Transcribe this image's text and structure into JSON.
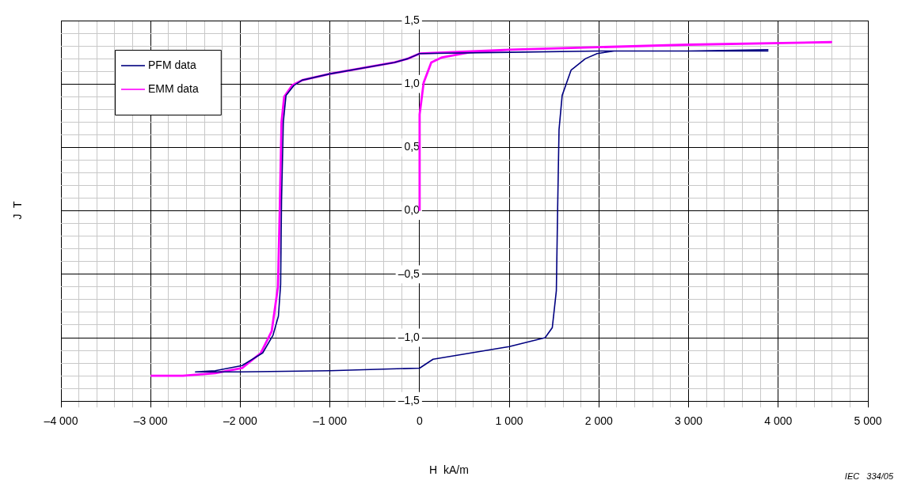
{
  "chart_data": {
    "type": "line",
    "xlabel": "H  kA/m",
    "ylabel": "J  T",
    "annotations": [
      "IEC   334/05"
    ],
    "series": [
      {
        "name": "PFM data",
        "color": "#000080",
        "x": [
          3890,
          3000,
          2000,
          1000,
          0,
          -130,
          -280,
          -1000,
          -1310,
          -1400,
          -1490,
          -1520,
          -1540,
          -1550,
          -1575,
          -1635,
          -1750,
          -1980,
          -2280,
          -2500,
          -2000,
          -1000,
          0,
          150,
          1000,
          1400,
          1480,
          1525,
          1540,
          1555,
          1590,
          1690,
          1850,
          1980,
          2170,
          3000,
          3890
        ],
        "values": [
          1.26,
          1.26,
          1.26,
          1.25,
          1.24,
          1.2,
          1.17,
          1.08,
          1.03,
          0.99,
          0.91,
          0.7,
          0.08,
          -0.58,
          -0.83,
          -0.98,
          -1.12,
          -1.22,
          -1.26,
          -1.27,
          -1.27,
          -1.26,
          -1.24,
          -1.17,
          -1.07,
          -1.0,
          -0.92,
          -0.63,
          0.04,
          0.64,
          0.91,
          1.11,
          1.2,
          1.24,
          1.26,
          1.26,
          1.27
        ]
      },
      {
        "name": "EMM data",
        "color": "#ff00ff",
        "x": [
          0,
          0,
          45,
          130,
          250,
          560,
          1000,
          3000,
          4590,
          3000,
          1000,
          0,
          -130,
          -280,
          -1000,
          -1310,
          -1420,
          -1510,
          -1540,
          -1560,
          -1580,
          -1650,
          -1770,
          -1980,
          -2280,
          -2640,
          -3000
        ],
        "values": [
          0,
          0.76,
          1.01,
          1.17,
          1.21,
          1.25,
          1.27,
          1.31,
          1.33,
          1.31,
          1.27,
          1.24,
          1.2,
          1.17,
          1.08,
          1.03,
          0.99,
          0.9,
          0.7,
          0.0,
          -0.6,
          -0.95,
          -1.12,
          -1.24,
          -1.28,
          -1.3,
          -1.3
        ]
      }
    ],
    "xlim": [
      -4000,
      5000
    ],
    "xticks": [
      {
        "value": -4000,
        "label": "–4 000"
      },
      {
        "value": -3800,
        "label": null
      },
      {
        "value": -3600,
        "label": null
      },
      {
        "value": -3400,
        "label": null
      },
      {
        "value": -3200,
        "label": null
      },
      {
        "value": -3000,
        "label": "–3 000"
      },
      {
        "value": -2800,
        "label": null
      },
      {
        "value": -2600,
        "label": null
      },
      {
        "value": -2400,
        "label": null
      },
      {
        "value": -2200,
        "label": null
      },
      {
        "value": -2000,
        "label": "–2 000"
      },
      {
        "value": -1800,
        "label": null
      },
      {
        "value": -1600,
        "label": null
      },
      {
        "value": -1400,
        "label": null
      },
      {
        "value": -1200,
        "label": null
      },
      {
        "value": -1000,
        "label": "–1 000"
      },
      {
        "value": -800,
        "label": null
      },
      {
        "value": -600,
        "label": null
      },
      {
        "value": -400,
        "label": null
      },
      {
        "value": -200,
        "label": null
      },
      {
        "value": 0,
        "label": "0"
      },
      {
        "value": 200,
        "label": null
      },
      {
        "value": 400,
        "label": null
      },
      {
        "value": 600,
        "label": null
      },
      {
        "value": 800,
        "label": null
      },
      {
        "value": 1000,
        "label": "1 000"
      },
      {
        "value": 1200,
        "label": null
      },
      {
        "value": 1400,
        "label": null
      },
      {
        "value": 1600,
        "label": null
      },
      {
        "value": 1800,
        "label": null
      },
      {
        "value": 2000,
        "label": "2 000"
      },
      {
        "value": 2200,
        "label": null
      },
      {
        "value": 2400,
        "label": null
      },
      {
        "value": 2600,
        "label": null
      },
      {
        "value": 2800,
        "label": null
      },
      {
        "value": 3000,
        "label": "3 000"
      },
      {
        "value": 3200,
        "label": null
      },
      {
        "value": 3400,
        "label": null
      },
      {
        "value": 3600,
        "label": null
      },
      {
        "value": 3800,
        "label": null
      },
      {
        "value": 4000,
        "label": "4 000"
      },
      {
        "value": 4200,
        "label": null
      },
      {
        "value": 4400,
        "label": null
      },
      {
        "value": 4600,
        "label": null
      },
      {
        "value": 4800,
        "label": null
      },
      {
        "value": 5000,
        "label": "5 000"
      }
    ],
    "ylim": [
      -1.5,
      1.5
    ],
    "yticks": [
      {
        "value": -1.5,
        "label": "–1,5"
      },
      {
        "value": -1.4,
        "label": null
      },
      {
        "value": -1.3,
        "label": null
      },
      {
        "value": -1.2,
        "label": null
      },
      {
        "value": -1.1,
        "label": null
      },
      {
        "value": -1.0,
        "label": "–1,0"
      },
      {
        "value": -0.9,
        "label": null
      },
      {
        "value": -0.8,
        "label": null
      },
      {
        "value": -0.7,
        "label": null
      },
      {
        "value": -0.6,
        "label": null
      },
      {
        "value": -0.5,
        "label": "–0,5"
      },
      {
        "value": -0.4,
        "label": null
      },
      {
        "value": -0.3,
        "label": null
      },
      {
        "value": -0.2,
        "label": null
      },
      {
        "value": -0.1,
        "label": null
      },
      {
        "value": 0,
        "label": "0,0"
      },
      {
        "value": 0.1,
        "label": null
      },
      {
        "value": 0.2,
        "label": null
      },
      {
        "value": 0.3,
        "label": null
      },
      {
        "value": 0.4,
        "label": null
      },
      {
        "value": 0.5,
        "label": "0,5"
      },
      {
        "value": 0.6,
        "label": null
      },
      {
        "value": 0.7,
        "label": null
      },
      {
        "value": 0.8,
        "label": null
      },
      {
        "value": 0.9,
        "label": null
      },
      {
        "value": 1.0,
        "label": "1,0"
      },
      {
        "value": 1.1,
        "label": null
      },
      {
        "value": 1.2,
        "label": null
      },
      {
        "value": 1.3,
        "label": null
      },
      {
        "value": 1.4,
        "label": null
      },
      {
        "value": 1.5,
        "label": "1,5"
      }
    ],
    "grid": true,
    "legend": "top left",
    "marker": "none",
    "line_style": "solid"
  }
}
